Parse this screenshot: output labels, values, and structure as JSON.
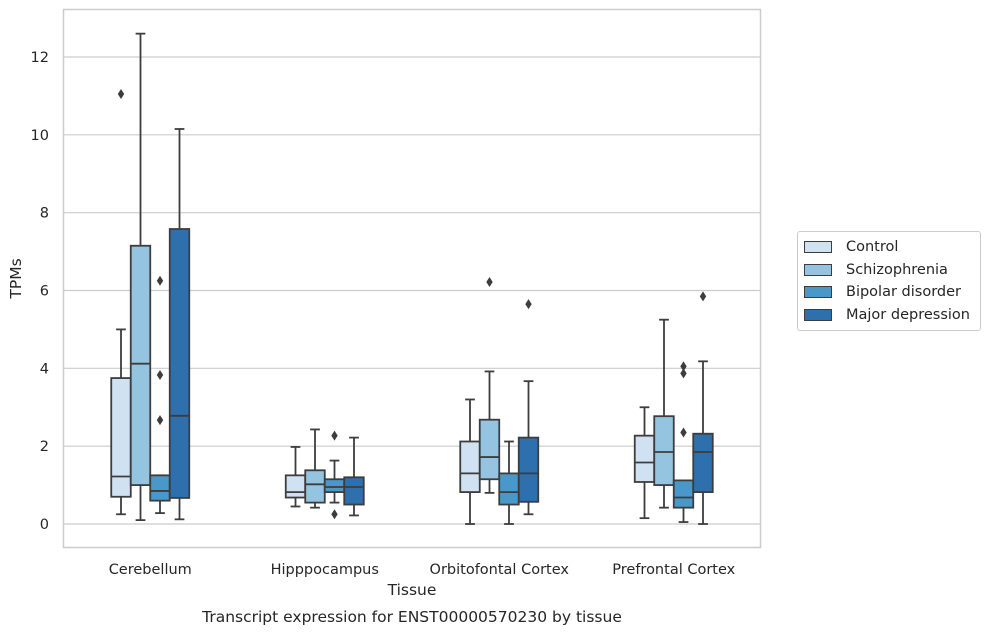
{
  "chart_data": {
    "type": "box",
    "title": "Transcript expression for ENST00000570230 by tissue",
    "xlabel": "Tissue",
    "ylabel": "TPMs",
    "ylim": [
      -0.6,
      13.2
    ],
    "yticks": [
      0,
      2,
      4,
      6,
      8,
      10,
      12
    ],
    "grid": "horizontal",
    "legend_position": "right",
    "categories": [
      "Cerebellum",
      "Hipppocampus",
      "Orbitofontal Cortex",
      "Prefrontal Cortex"
    ],
    "series": [
      {
        "name": "Control",
        "color": "#d0e1f2",
        "boxes": [
          {
            "whislo": 0.25,
            "q1": 0.7,
            "med": 1.22,
            "q3": 3.75,
            "whishi": 5.0,
            "fliers": [
              11.05
            ]
          },
          {
            "whislo": 0.45,
            "q1": 0.68,
            "med": 0.82,
            "q3": 1.25,
            "whishi": 1.98,
            "fliers": []
          },
          {
            "whislo": 0.0,
            "q1": 0.82,
            "med": 1.3,
            "q3": 2.12,
            "whishi": 3.2,
            "fliers": []
          },
          {
            "whislo": 0.15,
            "q1": 1.08,
            "med": 1.58,
            "q3": 2.27,
            "whishi": 3.0,
            "fliers": []
          }
        ]
      },
      {
        "name": "Schizophrenia",
        "color": "#94c4df",
        "boxes": [
          {
            "whislo": 0.1,
            "q1": 1.0,
            "med": 4.12,
            "q3": 7.15,
            "whishi": 12.6,
            "fliers": []
          },
          {
            "whislo": 0.42,
            "q1": 0.55,
            "med": 1.02,
            "q3": 1.38,
            "whishi": 2.43,
            "fliers": []
          },
          {
            "whislo": 0.8,
            "q1": 1.15,
            "med": 1.72,
            "q3": 2.68,
            "whishi": 3.92,
            "fliers": [
              6.22
            ]
          },
          {
            "whislo": 0.42,
            "q1": 1.0,
            "med": 1.85,
            "q3": 2.77,
            "whishi": 5.25,
            "fliers": []
          }
        ]
      },
      {
        "name": "Bipolar disorder",
        "color": "#4a98c9",
        "boxes": [
          {
            "whislo": 0.28,
            "q1": 0.6,
            "med": 0.85,
            "q3": 1.25,
            "whishi": 1.25,
            "fliers": [
              6.25,
              3.83,
              2.67
            ]
          },
          {
            "whislo": 0.55,
            "q1": 0.82,
            "med": 0.95,
            "q3": 1.15,
            "whishi": 1.63,
            "fliers": [
              2.27,
              0.25
            ]
          },
          {
            "whislo": 0.0,
            "q1": 0.5,
            "med": 0.82,
            "q3": 1.3,
            "whishi": 2.12,
            "fliers": []
          },
          {
            "whislo": 0.05,
            "q1": 0.42,
            "med": 0.68,
            "q3": 1.12,
            "whishi": 1.12,
            "fliers": [
              4.05,
              3.87,
              2.35
            ]
          }
        ]
      },
      {
        "name": "Major depression",
        "color": "#2e6fad",
        "boxes": [
          {
            "whislo": 0.12,
            "q1": 0.67,
            "med": 2.78,
            "q3": 7.58,
            "whishi": 10.15,
            "fliers": []
          },
          {
            "whislo": 0.22,
            "q1": 0.5,
            "med": 0.95,
            "q3": 1.2,
            "whishi": 2.22,
            "fliers": []
          },
          {
            "whislo": 0.25,
            "q1": 0.57,
            "med": 1.3,
            "q3": 2.22,
            "whishi": 3.67,
            "fliers": [
              5.65
            ]
          },
          {
            "whislo": 0.0,
            "q1": 0.82,
            "med": 1.85,
            "q3": 2.32,
            "whishi": 4.18,
            "fliers": [
              5.85
            ]
          }
        ]
      }
    ]
  }
}
